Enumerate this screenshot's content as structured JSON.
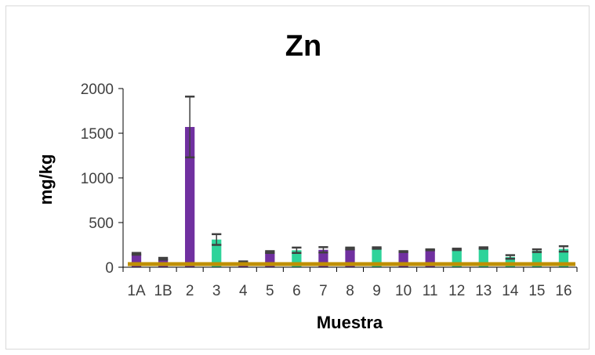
{
  "chart_data": {
    "type": "bar",
    "title": "Zn",
    "xlabel": "Muestra",
    "ylabel": "mg/kg",
    "ylim": [
      0,
      2000
    ],
    "yticks": [
      "0",
      "500",
      "1000",
      "1500",
      "2000"
    ],
    "categories": [
      "1A",
      "1B",
      "2",
      "3",
      "4",
      "5",
      "6",
      "7",
      "8",
      "9",
      "10",
      "11",
      "12",
      "13",
      "14",
      "15",
      "16"
    ],
    "values": [
      150,
      95,
      1570,
      310,
      60,
      170,
      190,
      195,
      210,
      215,
      175,
      195,
      200,
      215,
      115,
      185,
      205
    ],
    "errors": [
      10,
      10,
      340,
      60,
      5,
      10,
      30,
      30,
      10,
      8,
      5,
      5,
      8,
      8,
      20,
      15,
      30
    ],
    "reference_level": 35,
    "colors": {
      "purple": "#7030a0",
      "green": "#2ed39a",
      "error_bar": "#404040",
      "reference_line": "#bf8f00",
      "axis": "#000000"
    },
    "bar_colors": [
      "purple",
      "purple",
      "purple",
      "green",
      "purple",
      "purple",
      "green",
      "purple",
      "purple",
      "green",
      "purple",
      "purple",
      "green",
      "green",
      "green",
      "green",
      "green"
    ],
    "grid": false,
    "legend": "none"
  }
}
